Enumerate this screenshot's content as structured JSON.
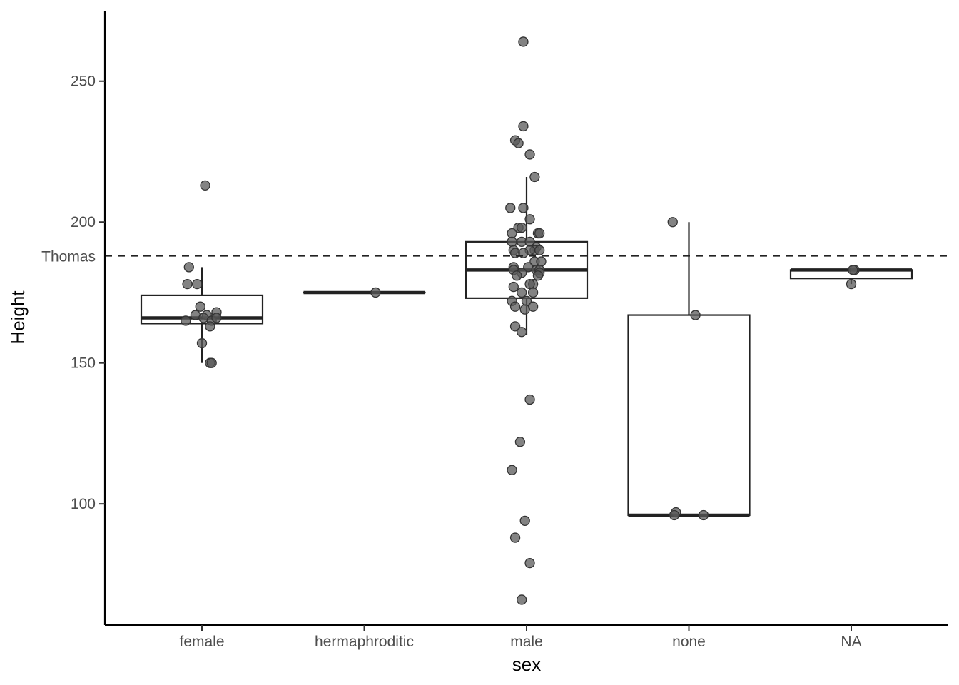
{
  "chart_data": {
    "type": "boxplot",
    "xlabel": "sex",
    "ylabel": "Height",
    "categories": [
      "female",
      "hermaphroditic",
      "male",
      "none",
      "NA"
    ],
    "y_ticks": [
      100,
      150,
      200,
      250
    ],
    "ylim": [
      57,
      275
    ],
    "grid": false,
    "reference_line": {
      "label": "Thomas",
      "value": 188,
      "style": "dashed"
    },
    "boxes": [
      {
        "category": "female",
        "whisker_low": 150,
        "q1": 164,
        "median": 166,
        "q3": 174,
        "whisker_high": 184
      },
      {
        "category": "hermaphroditic",
        "whisker_low": 175,
        "q1": 175,
        "median": 175,
        "q3": 175,
        "whisker_high": 175
      },
      {
        "category": "male",
        "whisker_low": 160,
        "q1": 173,
        "median": 183,
        "q3": 193,
        "whisker_high": 216
      },
      {
        "category": "none",
        "whisker_low": 96,
        "q1": 96,
        "median": 96,
        "q3": 167,
        "whisker_high": 200
      },
      {
        "category": "NA",
        "whisker_low": 178,
        "q1": 180,
        "median": 183,
        "q3": 183,
        "whisker_high": 183
      }
    ],
    "points": [
      {
        "category": "female",
        "jitter": [
          0.02,
          -0.08,
          -0.03,
          -0.09,
          -0.01,
          0.09,
          -0.04,
          0.03,
          0.01,
          0.06,
          0.09,
          -0.1,
          0.0,
          0.05,
          0.05
        ],
        "values": [
          213,
          184,
          178,
          178,
          170,
          168,
          167,
          167,
          166,
          165,
          166,
          165,
          157,
          163,
          150
        ]
      },
      {
        "category": "female",
        "jitter": [
          0.06
        ],
        "values": [
          150
        ]
      },
      {
        "category": "hermaphroditic",
        "jitter": [
          0.07
        ],
        "values": [
          175
        ]
      },
      {
        "category": "male",
        "jitter": [
          -0.02,
          -0.02,
          -0.07,
          -0.05,
          0.02,
          0.05,
          -0.1,
          -0.02,
          0.02,
          -0.05,
          -0.03,
          0.07,
          0.08,
          -0.09,
          -0.03,
          0.02,
          -0.09,
          0.06,
          -0.08,
          0.05,
          0.08,
          0.02,
          -0.07,
          -0.02,
          0.05,
          0.09,
          -0.08,
          0.01,
          0.06,
          0.08,
          -0.08,
          0.08,
          -0.03,
          -0.06,
          0.07,
          0.04,
          0.02,
          -0.08,
          0.04,
          -0.03,
          -0.09,
          -0.0,
          0.04,
          -0.07,
          -0.01,
          -0.07,
          -0.03,
          0.02,
          -0.04
        ],
        "values": [
          264,
          234,
          229,
          228,
          224,
          216,
          205,
          205,
          201,
          198,
          198,
          196,
          196,
          196,
          193,
          193,
          193,
          191,
          190,
          190,
          190,
          190,
          189,
          189,
          186,
          186,
          184,
          184,
          183,
          183,
          183,
          182,
          182,
          181,
          181,
          178,
          178,
          177,
          175,
          175,
          172,
          172,
          170,
          170,
          169,
          163,
          161,
          137,
          122
        ]
      },
      {
        "category": "male",
        "jitter": [
          -0.09,
          -0.01,
          -0.07,
          0.02,
          -0.03
        ],
        "values": [
          112,
          94,
          88,
          79,
          66
        ]
      },
      {
        "category": "none",
        "jitter": [
          -0.1,
          0.04,
          -0.08,
          0.09,
          -0.09
        ],
        "values": [
          200,
          167,
          97,
          96,
          96
        ]
      },
      {
        "category": "NA",
        "jitter": [
          0.02,
          0.01,
          0.0
        ],
        "values": [
          183,
          183,
          178
        ]
      }
    ]
  }
}
